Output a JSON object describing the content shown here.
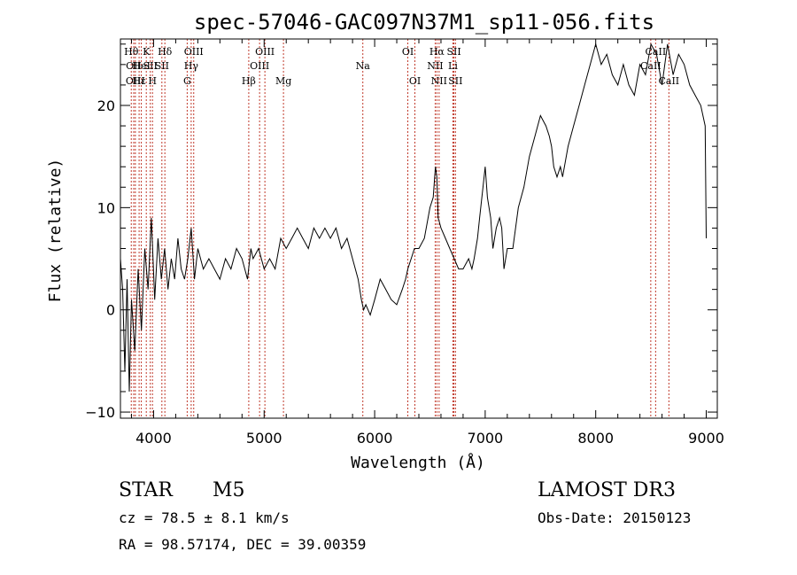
{
  "chart_data": {
    "type": "line",
    "title": "spec-57046-GAC097N37M1_sp11-056.fits",
    "xlabel": "Wavelength (Å)",
    "ylabel": "Flux (relative)",
    "xlim": [
      3700,
      9100
    ],
    "ylim": [
      -10.6,
      26.5
    ],
    "x_ticks": [
      4000,
      5000,
      6000,
      7000,
      8000,
      9000
    ],
    "x_tick_labels": [
      "4000",
      "5000",
      "6000",
      "7000",
      "8000",
      "9000"
    ],
    "y_ticks": [
      -10,
      0,
      10,
      20
    ],
    "y_tick_labels": [
      "−10",
      "0",
      "10",
      "20"
    ],
    "series": [
      {
        "name": "flux",
        "x": [
          3700,
          3720,
          3740,
          3760,
          3780,
          3800,
          3830,
          3860,
          3890,
          3920,
          3950,
          3980,
          4010,
          4040,
          4070,
          4100,
          4130,
          4160,
          4190,
          4220,
          4250,
          4280,
          4310,
          4340,
          4370,
          4400,
          4450,
          4500,
          4550,
          4600,
          4650,
          4700,
          4750,
          4800,
          4850,
          4880,
          4900,
          4950,
          5000,
          5050,
          5100,
          5150,
          5200,
          5250,
          5300,
          5350,
          5400,
          5450,
          5500,
          5550,
          5600,
          5650,
          5700,
          5750,
          5800,
          5850,
          5880,
          5900,
          5920,
          5940,
          5960,
          6000,
          6050,
          6100,
          6150,
          6200,
          6250,
          6280,
          6300,
          6330,
          6360,
          6400,
          6450,
          6500,
          6530,
          6550,
          6563,
          6575,
          6600,
          6640,
          6680,
          6720,
          6760,
          6800,
          6850,
          6880,
          6900,
          6930,
          6950,
          6980,
          7000,
          7020,
          7050,
          7070,
          7100,
          7130,
          7150,
          7170,
          7200,
          7250,
          7300,
          7350,
          7400,
          7450,
          7500,
          7550,
          7580,
          7600,
          7620,
          7650,
          7680,
          7700,
          7750,
          7800,
          7850,
          7900,
          7950,
          8000,
          8050,
          8100,
          8150,
          8200,
          8250,
          8300,
          8350,
          8400,
          8450,
          8500,
          8550,
          8600,
          8650,
          8700,
          8750,
          8800,
          8850,
          8900,
          8950,
          8990,
          9000
        ],
        "y": [
          5,
          2,
          -6,
          3,
          -8,
          1,
          -4,
          4,
          -2,
          6,
          2,
          9,
          1,
          7,
          3,
          6,
          2,
          5,
          3,
          7,
          4,
          3,
          5,
          8,
          3,
          6,
          4,
          5,
          4,
          3,
          5,
          4,
          6,
          5,
          3,
          6,
          5,
          6,
          4,
          5,
          4,
          7,
          6,
          7,
          8,
          7,
          6,
          8,
          7,
          8,
          7,
          8,
          6,
          7,
          5,
          3,
          1,
          0,
          0.5,
          0,
          -0.5,
          1,
          3,
          2,
          1,
          0.5,
          2,
          3,
          4,
          5,
          6,
          6,
          7,
          10,
          11,
          14,
          13,
          9,
          8,
          7,
          6,
          5,
          4,
          4,
          5,
          4,
          5,
          7,
          9,
          12,
          14,
          11,
          9,
          6,
          8,
          9,
          8,
          4,
          6,
          6,
          10,
          12,
          15,
          17,
          19,
          18,
          17,
          16,
          14,
          13,
          14,
          13,
          16,
          18,
          20,
          22,
          24,
          26,
          24,
          25,
          23,
          22,
          24,
          22,
          21,
          24,
          23,
          26,
          25,
          22,
          26,
          23,
          25,
          24,
          22,
          21,
          20,
          18,
          7
        ],
        "color": "#000000"
      }
    ],
    "lines": [
      {
        "wavelength": 3798,
        "label": "Hθ",
        "row": 1
      },
      {
        "wavelength": 3820,
        "label": "OII",
        "row": 2
      },
      {
        "wavelength": 3835,
        "label": "OIII",
        "row": 3
      },
      {
        "wavelength": 3869,
        "label": "Hε",
        "row": 3
      },
      {
        "wavelength": 3889,
        "label": "HeI",
        "row": 2
      },
      {
        "wavelength": 3934,
        "label": "K",
        "row": 1
      },
      {
        "wavelength": 3970,
        "label": "SII",
        "row": 2
      },
      {
        "wavelength": 3990,
        "label": "H",
        "row": 3
      },
      {
        "wavelength": 4102,
        "label": "Hδ",
        "row": 1
      },
      {
        "wavelength": 4075,
        "label": "SII",
        "row": 2
      },
      {
        "wavelength": 4304,
        "label": "G",
        "row": 3
      },
      {
        "wavelength": 4340,
        "label": "Hγ",
        "row": 2
      },
      {
        "wavelength": 4363,
        "label": "OIII",
        "row": 1
      },
      {
        "wavelength": 4861,
        "label": "Hβ",
        "row": 3
      },
      {
        "wavelength": 4959,
        "label": "OIII",
        "row": 2
      },
      {
        "wavelength": 5007,
        "label": "OIII",
        "row": 1
      },
      {
        "wavelength": 5175,
        "label": "Mg",
        "row": 3
      },
      {
        "wavelength": 5893,
        "label": "Na",
        "row": 2
      },
      {
        "wavelength": 6300,
        "label": "OI",
        "row": 1
      },
      {
        "wavelength": 6364,
        "label": "OI",
        "row": 3
      },
      {
        "wavelength": 6548,
        "label": "NII",
        "row": 2
      },
      {
        "wavelength": 6563,
        "label": "Hα",
        "row": 1
      },
      {
        "wavelength": 6583,
        "label": "NII",
        "row": 3
      },
      {
        "wavelength": 6708,
        "label": "Li",
        "row": 2
      },
      {
        "wavelength": 6717,
        "label": "SII",
        "row": 1
      },
      {
        "wavelength": 6731,
        "label": "SII",
        "row": 3
      },
      {
        "wavelength": 8498,
        "label": "CaII",
        "row": 2
      },
      {
        "wavelength": 8542,
        "label": "CaII",
        "row": 1
      },
      {
        "wavelength": 8662,
        "label": "CaII",
        "row": 3
      }
    ]
  },
  "info": {
    "object_class": "STAR",
    "subclass": "M5",
    "survey": "LAMOST DR3",
    "cz": "cz = 78.5 ± 8.1 km/s",
    "obs_date": "Obs-Date: 20150123",
    "coords": "RA =  98.57174, DEC =  39.00359"
  },
  "colors": {
    "line_marker": "#c0392b",
    "spectrum": "#000000",
    "axes": "#000000"
  }
}
